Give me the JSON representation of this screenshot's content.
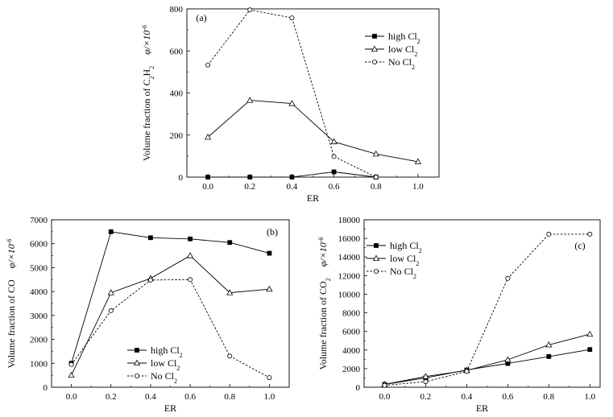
{
  "chart_data": [
    {
      "type": "line",
      "panel_label": "(a)",
      "xlabel": "ER",
      "ylabel": "Volume fraction of C2H2  φ/×10^-6",
      "xlim": [
        -0.1,
        1.1
      ],
      "ylim": [
        0,
        800
      ],
      "xticks": [
        0.0,
        0.2,
        0.4,
        0.6,
        0.8,
        1.0
      ],
      "xtick_labels": [
        "0.0",
        "0.2",
        "0.4",
        "0.6",
        "0.8",
        "1.0"
      ],
      "yticks": [
        0,
        200,
        400,
        600,
        800
      ],
      "ytick_labels": [
        "0",
        "200",
        "400",
        "600",
        "800"
      ],
      "legend_position": "top-right",
      "series": [
        {
          "name": "high Cl2",
          "marker": "square",
          "dash": "solid",
          "x": [
            0.0,
            0.2,
            0.4,
            0.6,
            0.8
          ],
          "y": [
            0,
            0,
            0,
            25,
            0
          ]
        },
        {
          "name": "low Cl2",
          "marker": "triangle",
          "dash": "solid",
          "x": [
            0.0,
            0.2,
            0.4,
            0.6,
            0.8,
            1.0
          ],
          "y": [
            190,
            365,
            350,
            168,
            110,
            73
          ]
        },
        {
          "name": "No Cl2",
          "marker": "circle",
          "dash": "dashed",
          "x": [
            0.0,
            0.2,
            0.4,
            0.6,
            0.8
          ],
          "y": [
            533,
            795,
            757,
            98,
            0
          ]
        }
      ]
    },
    {
      "type": "line",
      "panel_label": "(b)",
      "xlabel": "ER",
      "ylabel": "Volume fraction of CO  φ/×10^-6",
      "xlim": [
        -0.1,
        1.1
      ],
      "ylim": [
        0,
        7000
      ],
      "xticks": [
        0.0,
        0.2,
        0.4,
        0.6,
        0.8,
        1.0
      ],
      "xtick_labels": [
        "0.0",
        "0.2",
        "0.4",
        "0.6",
        "0.8",
        "1.0"
      ],
      "yticks": [
        0,
        1000,
        2000,
        3000,
        4000,
        5000,
        6000,
        7000
      ],
      "ytick_labels": [
        "0",
        "1000",
        "2000",
        "3000",
        "4000",
        "5000",
        "6000",
        "7000"
      ],
      "legend_position": "bottom-left",
      "series": [
        {
          "name": "high Cl2",
          "marker": "square",
          "dash": "solid",
          "x": [
            0.0,
            0.2,
            0.4,
            0.6,
            0.8,
            1.0
          ],
          "y": [
            1000,
            6500,
            6250,
            6200,
            6050,
            5600
          ]
        },
        {
          "name": "low Cl2",
          "marker": "triangle",
          "dash": "solid",
          "x": [
            0.0,
            0.2,
            0.4,
            0.6,
            0.8,
            1.0
          ],
          "y": [
            500,
            3950,
            4550,
            5500,
            3950,
            4100
          ]
        },
        {
          "name": "No Cl2",
          "marker": "circle",
          "dash": "dashed",
          "x": [
            0.0,
            0.2,
            0.4,
            0.6,
            0.8,
            1.0
          ],
          "y": [
            950,
            3200,
            4480,
            4500,
            1300,
            400
          ]
        }
      ]
    },
    {
      "type": "line",
      "panel_label": "(c)",
      "xlabel": "ER",
      "ylabel": "Volume fraction of CO2  φ/×10^-6",
      "xlim": [
        -0.1,
        1.05
      ],
      "ylim": [
        0,
        18000
      ],
      "xticks": [
        0.0,
        0.2,
        0.4,
        0.6,
        0.8,
        1.0
      ],
      "xtick_labels": [
        "0.0",
        "0.2",
        "0.4",
        "0.6",
        "0.8",
        "1.0"
      ],
      "yticks": [
        0,
        2000,
        4000,
        6000,
        8000,
        10000,
        12000,
        14000,
        16000,
        18000
      ],
      "ytick_labels": [
        "0",
        "2000",
        "4000",
        "6000",
        "8000",
        "10000",
        "12000",
        "14000",
        "16000",
        "18000"
      ],
      "legend_position": "top-left",
      "series": [
        {
          "name": "high Cl2",
          "marker": "square",
          "dash": "solid",
          "x": [
            0.0,
            0.2,
            0.4,
            0.6,
            0.8,
            1.0
          ],
          "y": [
            300,
            1000,
            1850,
            2550,
            3300,
            4050
          ]
        },
        {
          "name": "low Cl2",
          "marker": "triangle",
          "dash": "solid",
          "x": [
            0.0,
            0.2,
            0.4,
            0.6,
            0.8,
            1.0
          ],
          "y": [
            300,
            1150,
            1800,
            2950,
            4550,
            5700
          ]
        },
        {
          "name": "No Cl2",
          "marker": "circle",
          "dash": "dashed",
          "x": [
            0.0,
            0.2,
            0.4,
            0.6,
            0.8,
            1.0
          ],
          "y": [
            200,
            600,
            1700,
            11700,
            16450,
            16450
          ]
        }
      ]
    }
  ]
}
